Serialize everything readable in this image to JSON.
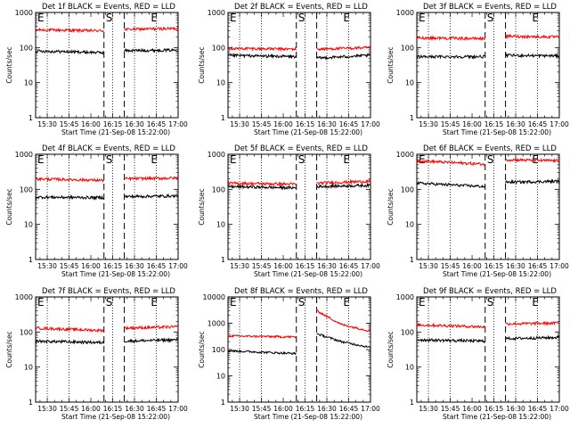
{
  "figure": {
    "xlabel": "Start Time (21-Sep-08 15:22:00)",
    "ylabel": "Counts/sec",
    "x_ticks": [
      "15:30",
      "15:45",
      "16:00",
      "16:15",
      "16:30",
      "16:45",
      "17:00"
    ],
    "y_ticks": [
      1,
      10,
      100,
      1000,
      10000
    ],
    "markers": [
      {
        "letter": "E",
        "time": "15:22"
      },
      {
        "letter": "S",
        "time": "16:09"
      },
      {
        "letter": "E",
        "time": "16:40"
      }
    ],
    "colors": {
      "events": "#000000",
      "lld": "#ff0000",
      "background": "#ffffff"
    }
  },
  "chart_data": [
    {
      "type": "line",
      "title": "Det 1f BLACK = Events, RED = LLD",
      "y_scale": "log",
      "xlim": [
        "15:22",
        "17:00"
      ],
      "ylim": [
        1,
        1000
      ],
      "x_ticks": [
        "15:30",
        "15:45",
        "16:00",
        "16:15",
        "16:30",
        "16:45",
        "17:00"
      ],
      "y_ticks": [
        1,
        10,
        100,
        1000
      ],
      "dashed_lines": [
        "16:09",
        "16:23"
      ],
      "dotted_lines": [
        "15:30",
        "15:45",
        "16:15",
        "16:30",
        "16:45"
      ],
      "series": [
        {
          "color": "#ff0000",
          "x": [
            "15:22",
            "16:09",
            "16:23",
            "17:00"
          ],
          "y": [
            320,
            300,
            330,
            350
          ],
          "segments": [
            [
              "15:22",
              "16:09"
            ],
            [
              "16:23",
              "17:00"
            ]
          ]
        },
        {
          "color": "#000000",
          "x": [
            "15:22",
            "16:09",
            "16:23",
            "17:00"
          ],
          "y": [
            80,
            72,
            82,
            85
          ],
          "segments": [
            [
              "15:22",
              "16:09"
            ],
            [
              "16:23",
              "17:00"
            ]
          ]
        }
      ]
    },
    {
      "type": "line",
      "title": "Det 2f BLACK = Events, RED = LLD",
      "y_scale": "log",
      "xlim": [
        "15:22",
        "17:00"
      ],
      "ylim": [
        1,
        1000
      ],
      "x_ticks": [
        "15:30",
        "15:45",
        "16:00",
        "16:15",
        "16:30",
        "16:45",
        "17:00"
      ],
      "y_ticks": [
        1,
        10,
        100,
        1000
      ],
      "dashed_lines": [
        "16:09",
        "16:23"
      ],
      "dotted_lines": [
        "15:30",
        "15:45",
        "16:15",
        "16:30",
        "16:45"
      ],
      "series": [
        {
          "color": "#ff0000",
          "x": [
            "15:22",
            "16:09",
            "16:23",
            "17:00"
          ],
          "y": [
            95,
            90,
            90,
            100
          ],
          "segments": [
            [
              "15:22",
              "16:09"
            ],
            [
              "16:23",
              "17:00"
            ]
          ]
        },
        {
          "color": "#000000",
          "x": [
            "15:22",
            "16:09",
            "16:23",
            "17:00"
          ],
          "y": [
            60,
            55,
            50,
            60
          ],
          "segments": [
            [
              "15:22",
              "16:09"
            ],
            [
              "16:23",
              "17:00"
            ]
          ]
        }
      ]
    },
    {
      "type": "line",
      "title": "Det 3f BLACK = Events, RED = LLD",
      "y_scale": "log",
      "xlim": [
        "15:22",
        "17:00"
      ],
      "ylim": [
        1,
        1000
      ],
      "x_ticks": [
        "15:30",
        "15:45",
        "16:00",
        "16:15",
        "16:30",
        "16:45",
        "17:00"
      ],
      "y_ticks": [
        1,
        10,
        100,
        1000
      ],
      "dashed_lines": [
        "16:09",
        "16:23"
      ],
      "dotted_lines": [
        "15:30",
        "15:45",
        "16:15",
        "16:30",
        "16:45"
      ],
      "series": [
        {
          "color": "#ff0000",
          "x": [
            "15:22",
            "16:09",
            "16:23",
            "17:00"
          ],
          "y": [
            190,
            180,
            210,
            200
          ],
          "segments": [
            [
              "15:22",
              "16:09"
            ],
            [
              "16:23",
              "17:00"
            ]
          ]
        },
        {
          "color": "#000000",
          "x": [
            "15:22",
            "16:09",
            "16:23",
            "17:00"
          ],
          "y": [
            55,
            55,
            60,
            58
          ],
          "segments": [
            [
              "15:22",
              "16:09"
            ],
            [
              "16:23",
              "17:00"
            ]
          ]
        }
      ]
    },
    {
      "type": "line",
      "title": "Det 4f BLACK = Events, RED = LLD",
      "y_scale": "log",
      "xlim": [
        "15:22",
        "17:00"
      ],
      "ylim": [
        1,
        1000
      ],
      "x_ticks": [
        "15:30",
        "15:45",
        "16:00",
        "16:15",
        "16:30",
        "16:45",
        "17:00"
      ],
      "y_ticks": [
        1,
        10,
        100,
        1000
      ],
      "dashed_lines": [
        "16:09",
        "16:23"
      ],
      "dotted_lines": [
        "15:30",
        "15:45",
        "16:15",
        "16:30",
        "16:45"
      ],
      "series": [
        {
          "color": "#ff0000",
          "x": [
            "15:22",
            "16:09",
            "16:23",
            "17:00"
          ],
          "y": [
            200,
            180,
            200,
            210
          ],
          "segments": [
            [
              "15:22",
              "16:09"
            ],
            [
              "16:23",
              "17:00"
            ]
          ]
        },
        {
          "color": "#000000",
          "x": [
            "15:22",
            "16:09",
            "16:23",
            "17:00"
          ],
          "y": [
            60,
            58,
            62,
            65
          ],
          "segments": [
            [
              "15:22",
              "16:09"
            ],
            [
              "16:23",
              "17:00"
            ]
          ]
        }
      ]
    },
    {
      "type": "line",
      "title": "Det 5f BLACK = Events, RED = LLD",
      "y_scale": "log",
      "xlim": [
        "15:22",
        "17:00"
      ],
      "ylim": [
        1,
        1000
      ],
      "x_ticks": [
        "15:30",
        "15:45",
        "16:00",
        "16:15",
        "16:30",
        "16:45",
        "17:00"
      ],
      "y_ticks": [
        1,
        10,
        100,
        1000
      ],
      "dashed_lines": [
        "16:09",
        "16:23"
      ],
      "dotted_lines": [
        "15:30",
        "15:45",
        "16:15",
        "16:30",
        "16:45"
      ],
      "series": [
        {
          "color": "#ff0000",
          "x": [
            "15:22",
            "16:09",
            "16:23",
            "17:00"
          ],
          "y": [
            150,
            140,
            150,
            170
          ],
          "segments": [
            [
              "15:22",
              "16:09"
            ],
            [
              "16:23",
              "17:00"
            ]
          ]
        },
        {
          "color": "#000000",
          "x": [
            "15:22",
            "16:09",
            "16:23",
            "17:00"
          ],
          "y": [
            120,
            110,
            120,
            130
          ],
          "segments": [
            [
              "15:22",
              "16:09"
            ],
            [
              "16:23",
              "17:00"
            ]
          ]
        }
      ]
    },
    {
      "type": "line",
      "title": "Det 6f BLACK = Events, RED = LLD",
      "y_scale": "log",
      "xlim": [
        "15:22",
        "17:00"
      ],
      "ylim": [
        1,
        1000
      ],
      "x_ticks": [
        "15:30",
        "15:45",
        "16:00",
        "16:15",
        "16:30",
        "16:45",
        "17:00"
      ],
      "y_ticks": [
        1,
        10,
        100,
        1000
      ],
      "dashed_lines": [
        "16:09",
        "16:23"
      ],
      "dotted_lines": [
        "15:30",
        "15:45",
        "16:15",
        "16:30",
        "16:45"
      ],
      "series": [
        {
          "color": "#ff0000",
          "x": [
            "15:22",
            "16:09",
            "16:23",
            "17:00"
          ],
          "y": [
            650,
            520,
            700,
            650
          ],
          "segments": [
            [
              "15:22",
              "16:09"
            ],
            [
              "16:23",
              "17:00"
            ]
          ]
        },
        {
          "color": "#000000",
          "x": [
            "15:22",
            "16:09",
            "16:23",
            "17:00"
          ],
          "y": [
            150,
            120,
            160,
            170
          ],
          "segments": [
            [
              "15:22",
              "16:09"
            ],
            [
              "16:23",
              "17:00"
            ]
          ]
        }
      ]
    },
    {
      "type": "line",
      "title": "Det 7f BLACK = Events, RED = LLD",
      "y_scale": "log",
      "xlim": [
        "15:22",
        "17:00"
      ],
      "ylim": [
        1,
        1000
      ],
      "x_ticks": [
        "15:30",
        "15:45",
        "16:00",
        "16:15",
        "16:30",
        "16:45",
        "17:00"
      ],
      "y_ticks": [
        1,
        10,
        100,
        1000
      ],
      "dashed_lines": [
        "16:09",
        "16:23"
      ],
      "dotted_lines": [
        "15:30",
        "15:45",
        "16:15",
        "16:30",
        "16:45"
      ],
      "series": [
        {
          "color": "#ff0000",
          "x": [
            "15:22",
            "16:09",
            "16:23",
            "17:00"
          ],
          "y": [
            130,
            110,
            130,
            140
          ],
          "segments": [
            [
              "15:22",
              "16:09"
            ],
            [
              "16:23",
              "17:00"
            ]
          ]
        },
        {
          "color": "#000000",
          "x": [
            "15:22",
            "16:09",
            "16:23",
            "17:00"
          ],
          "y": [
            55,
            50,
            55,
            60
          ],
          "segments": [
            [
              "15:22",
              "16:09"
            ],
            [
              "16:23",
              "17:00"
            ]
          ]
        }
      ]
    },
    {
      "type": "line",
      "title": "Det 8f BLACK = Events, RED = LLD",
      "y_scale": "log",
      "xlim": [
        "15:22",
        "17:00"
      ],
      "ylim": [
        1,
        10000
      ],
      "x_ticks": [
        "15:30",
        "15:45",
        "16:00",
        "16:15",
        "16:30",
        "16:45",
        "17:00"
      ],
      "y_ticks": [
        1,
        10,
        100,
        1000,
        10000
      ],
      "dashed_lines": [
        "16:09",
        "16:23"
      ],
      "dotted_lines": [
        "15:30",
        "15:45",
        "16:15",
        "16:30",
        "16:45"
      ],
      "series": [
        {
          "color": "#ff0000",
          "x": [
            "15:22",
            "16:09",
            "16:23",
            "16:40",
            "17:00"
          ],
          "y": [
            330,
            300,
            3000,
            900,
            500
          ],
          "segments": [
            [
              "15:22",
              "16:09"
            ],
            [
              "16:23",
              "17:00"
            ]
          ]
        },
        {
          "color": "#000000",
          "x": [
            "15:22",
            "16:09",
            "16:23",
            "16:40",
            "17:00"
          ],
          "y": [
            90,
            70,
            400,
            200,
            120
          ],
          "segments": [
            [
              "15:22",
              "16:09"
            ],
            [
              "16:23",
              "17:00"
            ]
          ]
        }
      ]
    },
    {
      "type": "line",
      "title": "Det 9f BLACK = Events, RED = LLD",
      "y_scale": "log",
      "xlim": [
        "15:22",
        "17:00"
      ],
      "ylim": [
        1,
        1000
      ],
      "x_ticks": [
        "15:30",
        "15:45",
        "16:00",
        "16:15",
        "16:30",
        "16:45",
        "17:00"
      ],
      "y_ticks": [
        1,
        10,
        100,
        1000
      ],
      "dashed_lines": [
        "16:09",
        "16:23"
      ],
      "dotted_lines": [
        "15:30",
        "15:45",
        "16:15",
        "16:30",
        "16:45"
      ],
      "series": [
        {
          "color": "#ff0000",
          "x": [
            "15:22",
            "16:09",
            "16:23",
            "17:00"
          ],
          "y": [
            160,
            140,
            170,
            180
          ],
          "segments": [
            [
              "15:22",
              "16:09"
            ],
            [
              "16:23",
              "17:00"
            ]
          ]
        },
        {
          "color": "#000000",
          "x": [
            "15:22",
            "16:09",
            "16:23",
            "17:00"
          ],
          "y": [
            60,
            55,
            65,
            70
          ],
          "segments": [
            [
              "15:22",
              "16:09"
            ],
            [
              "16:23",
              "17:00"
            ]
          ]
        }
      ]
    }
  ]
}
